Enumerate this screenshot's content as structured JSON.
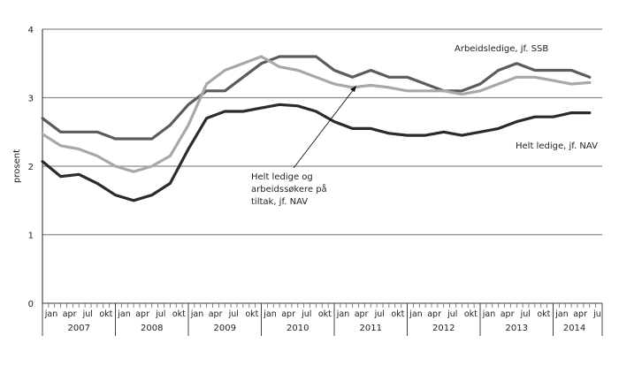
{
  "chart_data": {
    "type": "line",
    "title": "",
    "xlabel": "",
    "ylabel": "prosent",
    "ylim": [
      0,
      4
    ],
    "yticks": [
      0,
      1,
      2,
      3,
      4
    ],
    "grid": "horizontal",
    "month_tick_labels": [
      "jan",
      "apr",
      "jul",
      "okt"
    ],
    "years": [
      "2007",
      "2008",
      "2009",
      "2010",
      "2011",
      "2012",
      "2013",
      "2014"
    ],
    "last_year_month_labels": [
      "jan",
      "apr",
      "jul"
    ],
    "x_step_months": 3,
    "x": [
      "jan 2007",
      "apr 2007",
      "jul 2007",
      "okt 2007",
      "jan 2008",
      "apr 2008",
      "jul 2008",
      "okt 2008",
      "jan 2009",
      "apr 2009",
      "jul 2009",
      "okt 2009",
      "jan 2010",
      "apr 2010",
      "jul 2010",
      "okt 2010",
      "jan 2011",
      "apr 2011",
      "jul 2011",
      "okt 2011",
      "jan 2012",
      "apr 2012",
      "jul 2012",
      "okt 2012",
      "jan 2013",
      "apr 2013",
      "jul 2013",
      "okt 2013",
      "jan 2014",
      "apr 2014",
      "jul 2014"
    ],
    "series": [
      {
        "name": "Arbeidsledige, jf. SSB",
        "color": "#5c5c5c",
        "values": [
          2.7,
          2.5,
          2.5,
          2.5,
          2.4,
          2.4,
          2.4,
          2.6,
          2.9,
          3.1,
          3.1,
          3.3,
          3.5,
          3.6,
          3.6,
          3.6,
          3.4,
          3.3,
          3.4,
          3.3,
          3.3,
          3.2,
          3.1,
          3.1,
          3.2,
          3.4,
          3.5,
          3.4,
          3.4,
          3.4,
          3.3
        ]
      },
      {
        "name": "Helt ledige og arbeidssøkere på tiltak, jf. NAV",
        "color": "#a8a8a8",
        "values": [
          2.47,
          2.3,
          2.25,
          2.15,
          2.0,
          1.92,
          2.0,
          2.15,
          2.6,
          3.2,
          3.4,
          3.5,
          3.6,
          3.45,
          3.4,
          3.3,
          3.2,
          3.15,
          3.18,
          3.15,
          3.1,
          3.1,
          3.1,
          3.05,
          3.1,
          3.2,
          3.3,
          3.3,
          3.25,
          3.2,
          3.22
        ]
      },
      {
        "name": "Helt ledige, jf. NAV",
        "color": "#2b2b2b",
        "values": [
          2.07,
          1.85,
          1.88,
          1.75,
          1.58,
          1.5,
          1.58,
          1.75,
          2.25,
          2.7,
          2.8,
          2.8,
          2.85,
          2.9,
          2.88,
          2.8,
          2.65,
          2.55,
          2.55,
          2.48,
          2.45,
          2.45,
          2.5,
          2.45,
          2.5,
          2.55,
          2.65,
          2.72,
          2.72,
          2.78,
          2.78
        ]
      }
    ],
    "annotations": [
      {
        "text": "Arbeidsledige, jf. SSB",
        "series": 0
      },
      {
        "text": "Helt ledige, jf. NAV",
        "series": 2
      },
      {
        "lines": [
          "Helt ledige og",
          "arbeidssøkere på",
          "tiltak, jf. NAV"
        ],
        "series": 1,
        "arrow": true
      }
    ]
  }
}
